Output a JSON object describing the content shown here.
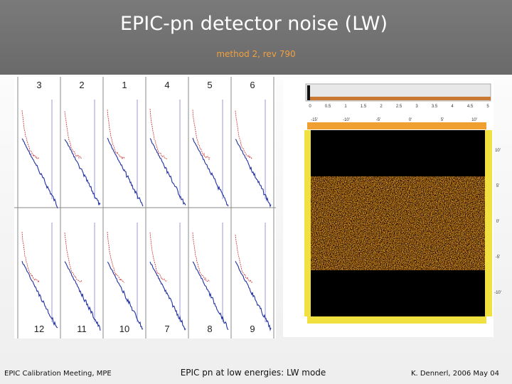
{
  "header": {
    "title": "EPIC-pn detector noise (LW)",
    "subtitle": "method 2, rev 790"
  },
  "panels": {
    "top_labels": [
      "3",
      "2",
      "1",
      "4",
      "5",
      "6"
    ],
    "bottom_labels": [
      "12",
      "11",
      "10",
      "7",
      "8",
      "9"
    ]
  },
  "noise_map": {
    "histogram_ticks": [
      "0",
      "0.5",
      "1",
      "1.5",
      "2",
      "2.5",
      "3",
      "3.5",
      "4",
      "4.5",
      "5"
    ],
    "top_ticks": [
      "-15'",
      "-10'",
      "-5'",
      "0'",
      "5'",
      "10'"
    ],
    "right_ticks": [
      "10'",
      "5'",
      "0'",
      "-5'",
      "-10'"
    ]
  },
  "footer": {
    "left": "EPIC Calibration Meeting, MPE",
    "center": "EPIC pn at low energies: LW mode",
    "right": "K. Dennerl, 2006 May 04"
  }
}
